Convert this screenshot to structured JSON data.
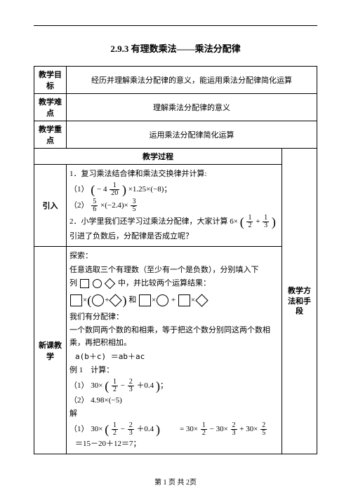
{
  "title": "2.9.3 有理数乘法——乘法分配律",
  "header_rows": {
    "goal_label": "教学目标",
    "goal_text": "经历并理解乘法分配律的意义，能运用乘法分配律简化运算",
    "difficulty_label": "教学难点",
    "difficulty_text": "理解乘法分配律的意义",
    "focus_label": "教学重点",
    "focus_text": "运用乘法分配律简化运算"
  },
  "process_header": "教学过程",
  "methods_header": "教学方法和手段",
  "intro": {
    "label": "引入",
    "line1": "1．复习乘法结合律和乘法交换律并计算:",
    "item1_prefix": "（1）",
    "item1_tail": "×1.25×(−8)",
    "item1_mixed_whole": "− 4",
    "item1_mixed_num": "1",
    "item1_mixed_den": "20",
    "item2_prefix": "（2）",
    "f1n": "5",
    "f1d": "6",
    "mid": "×(−2.4)×",
    "f2n": "3",
    "f2d": "5",
    "line2a": "2．小学里我们还学习过乘法分配律，大家计算 6×",
    "pf1n": "1",
    "pf1d": "2",
    "plus": " + ",
    "pf2n": "1",
    "pf2d": "3",
    "line3": "引进了负数后，分配律是否成立呢？"
  },
  "newlesson": {
    "label": "新课教学",
    "explore": "探索：",
    "lA": "任意选取三个有理数（至少有一个是负数），分别填入下",
    "lB_pre": "列",
    "lB_post": "中，并比较两个运算结果：",
    "and": " 和 ",
    "lC": "我们有分配律：",
    "lD": "一个数同两个数的和相乘，等于把这个数分别同这两个数相乘，再把积相加。",
    "formula": "a(b＋c) ＝ab＋ac",
    "ex_label": "例 1　计算：",
    "ex1_prefix": "（1）",
    "ex30": "30×",
    "e1f1n": "1",
    "e1f1d": "2",
    "minus": " − ",
    "e1f2n": "2",
    "e1f2d": "3",
    "e1tail": "＋0.4",
    "semicolon": "；",
    "ex2_prefix": "（2）",
    "ex2_body": "4.98×(−5)",
    "solve": "解",
    "s1_prefix": "（1）",
    "rhs_a": "= 30×",
    "rhs_b": " − 30×",
    "rhs_c": " + 30×",
    "r3n": "2",
    "r3d": "5",
    "final": "＝15－20＋12＝7；"
  },
  "footer": "第 1 页 共 2页"
}
